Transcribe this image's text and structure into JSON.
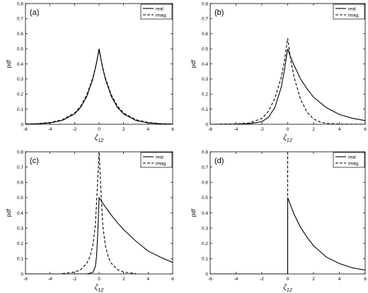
{
  "chart_data": [
    {
      "type": "line",
      "panel_label": "(a)",
      "xlabel": "ζ",
      "xlabel_sub": "12",
      "ylabel": "pdf",
      "xlim": [
        -6,
        6
      ],
      "ylim": [
        0,
        0.8
      ],
      "xticks": [
        "-6",
        "-4",
        "-2",
        "0",
        "2",
        "4",
        "6"
      ],
      "yticks": [
        "0",
        "0.1",
        "0.2",
        "0.3",
        "0.4",
        "0.5",
        "0.6",
        "0.7",
        "0.8"
      ],
      "legend": {
        "position": "top-right",
        "entries": [
          "real",
          "imag."
        ]
      },
      "series": [
        {
          "name": "real",
          "style": "solid",
          "x": [
            -6,
            -5,
            -4,
            -3,
            -2,
            -1.5,
            -1,
            -0.5,
            -0.25,
            0,
            0.25,
            0.5,
            1,
            1.5,
            2,
            3,
            4,
            5,
            6
          ],
          "y": [
            0.001,
            0.003,
            0.009,
            0.025,
            0.068,
            0.112,
            0.184,
            0.303,
            0.389,
            0.5,
            0.389,
            0.303,
            0.184,
            0.112,
            0.068,
            0.025,
            0.009,
            0.003,
            0.001
          ]
        },
        {
          "name": "imag.",
          "style": "dashed",
          "x": [
            -6,
            -5,
            -4,
            -3,
            -2,
            -1.5,
            -1,
            -0.5,
            -0.25,
            0,
            0.25,
            0.5,
            1,
            1.5,
            2,
            3,
            4,
            5,
            6
          ],
          "y": [
            0.002,
            0.004,
            0.012,
            0.03,
            0.075,
            0.12,
            0.195,
            0.31,
            0.395,
            0.49,
            0.395,
            0.31,
            0.195,
            0.12,
            0.075,
            0.03,
            0.012,
            0.004,
            0.002
          ]
        }
      ]
    },
    {
      "type": "line",
      "panel_label": "(b)",
      "xlabel": "ζ",
      "xlabel_sub": "12",
      "ylabel": "pdf",
      "xlim": [
        -6,
        6
      ],
      "ylim": [
        0,
        0.8
      ],
      "xticks": [
        "-6",
        "-4",
        "-2",
        "0",
        "2",
        "4",
        "6"
      ],
      "yticks": [
        "0",
        "0.1",
        "0.2",
        "0.3",
        "0.4",
        "0.5",
        "0.6",
        "0.7",
        "0.8"
      ],
      "legend": {
        "position": "top-right",
        "entries": [
          "real",
          "imag."
        ]
      },
      "series": [
        {
          "name": "real",
          "style": "solid",
          "x": [
            -6,
            -4,
            -3,
            -2,
            -1.5,
            -1,
            -0.5,
            -0.25,
            0,
            0.25,
            0.5,
            1,
            1.5,
            2,
            3,
            4,
            5,
            6
          ],
          "y": [
            0,
            0.001,
            0.004,
            0.017,
            0.045,
            0.11,
            0.245,
            0.36,
            0.5,
            0.44,
            0.39,
            0.3,
            0.235,
            0.18,
            0.11,
            0.065,
            0.04,
            0.024
          ]
        },
        {
          "name": "imag.",
          "style": "dashed",
          "x": [
            -6,
            -4,
            -3,
            -2,
            -1.5,
            -1,
            -0.5,
            -0.25,
            0,
            0.25,
            0.5,
            1,
            1.5,
            2,
            2.5,
            3,
            4,
            6
          ],
          "y": [
            0,
            0.002,
            0.008,
            0.038,
            0.085,
            0.17,
            0.31,
            0.42,
            0.57,
            0.42,
            0.31,
            0.165,
            0.08,
            0.035,
            0.015,
            0.006,
            0.001,
            0
          ]
        }
      ]
    },
    {
      "type": "line",
      "panel_label": "(c)",
      "xlabel": "ζ",
      "xlabel_sub": "12",
      "ylabel": "pdf",
      "xlim": [
        -6,
        6
      ],
      "ylim": [
        0,
        0.8
      ],
      "xticks": [
        "-6",
        "-4",
        "-2",
        "0",
        "2",
        "4",
        "6"
      ],
      "yticks": [
        "0",
        "0.1",
        "0.2",
        "0.3",
        "0.4",
        "0.5",
        "0.6",
        "0.7",
        "0.8"
      ],
      "legend": {
        "position": "top-right",
        "entries": [
          "real",
          "imag."
        ]
      },
      "series": [
        {
          "name": "real",
          "style": "solid",
          "x": [
            -6,
            -1,
            -0.5,
            -0.3,
            -0.2,
            -0.1,
            0,
            0.5,
            1,
            1.5,
            2,
            3,
            4,
            5,
            6
          ],
          "y": [
            0,
            0,
            0.01,
            0.05,
            0.12,
            0.28,
            0.5,
            0.44,
            0.385,
            0.335,
            0.29,
            0.215,
            0.15,
            0.11,
            0.075
          ]
        },
        {
          "name": "imag.",
          "style": "dashed",
          "x": [
            -3,
            -2,
            -1.5,
            -1,
            -0.75,
            -0.5,
            -0.3,
            -0.15,
            0,
            0.15,
            0.3,
            0.5,
            0.75,
            1,
            1.5,
            2,
            3
          ],
          "y": [
            0.002,
            0.012,
            0.028,
            0.07,
            0.11,
            0.19,
            0.32,
            0.55,
            0.8,
            0.55,
            0.32,
            0.19,
            0.11,
            0.07,
            0.028,
            0.012,
            0.002
          ]
        }
      ]
    },
    {
      "type": "line",
      "panel_label": "(d)",
      "xlabel": "ζ",
      "xlabel_sub": "12",
      "ylabel": "pdf",
      "xlim": [
        -6,
        6
      ],
      "ylim": [
        0,
        0.8
      ],
      "xticks": [
        "-6",
        "-4",
        "-2",
        "0",
        "2",
        "4",
        "6"
      ],
      "yticks": [
        "0",
        "0.1",
        "0.2",
        "0.3",
        "0.4",
        "0.5",
        "0.6",
        "0.7",
        "0.8"
      ],
      "legend": {
        "position": "top-right",
        "entries": [
          "real",
          "imag."
        ]
      },
      "series": [
        {
          "name": "real",
          "style": "solid",
          "x": [
            -6,
            -0.02,
            0,
            0,
            0.5,
            1,
            1.5,
            2,
            3,
            4,
            5,
            6
          ],
          "y": [
            0,
            0,
            0,
            0.5,
            0.39,
            0.305,
            0.24,
            0.185,
            0.11,
            0.068,
            0.04,
            0.025
          ]
        },
        {
          "name": "imag.",
          "style": "dashed",
          "x": [
            0,
            0
          ],
          "y": [
            0,
            0.8
          ]
        }
      ]
    }
  ]
}
